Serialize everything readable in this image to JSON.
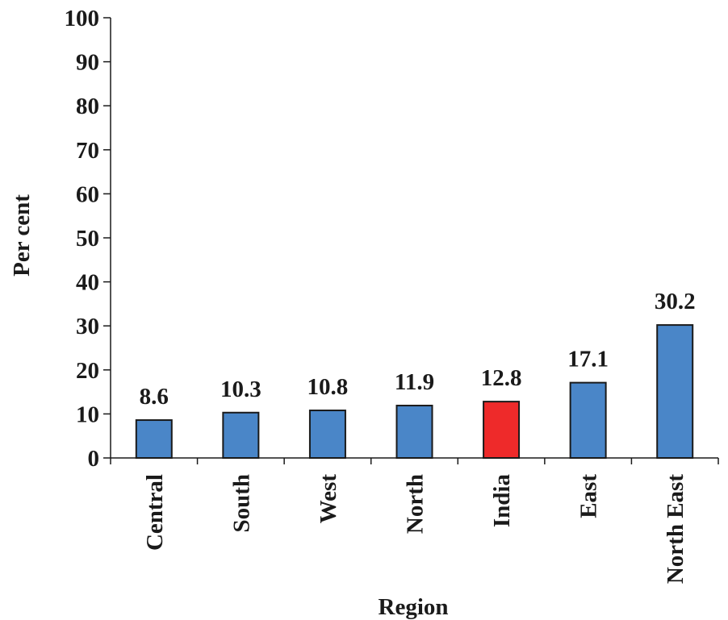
{
  "chart_data": {
    "type": "bar",
    "title": "",
    "xlabel": "Region",
    "ylabel": "Per cent",
    "ylim": [
      0,
      100
    ],
    "yticks": [
      0,
      10,
      20,
      30,
      40,
      50,
      60,
      70,
      80,
      90,
      100
    ],
    "categories": [
      "Central",
      "South",
      "West",
      "North",
      "India",
      "East",
      "North East"
    ],
    "values": [
      8.6,
      10.3,
      10.8,
      11.9,
      12.8,
      17.1,
      30.2
    ],
    "value_labels": [
      "8.6",
      "10.3",
      "10.8",
      "11.9",
      "12.8",
      "17.1",
      "30.2"
    ],
    "bar_colors": [
      "#4a86c8",
      "#4a86c8",
      "#4a86c8",
      "#4a86c8",
      "#ee2a2a",
      "#4a86c8",
      "#4a86c8"
    ],
    "highlight_category": "India",
    "grid": false,
    "legend": "none"
  }
}
